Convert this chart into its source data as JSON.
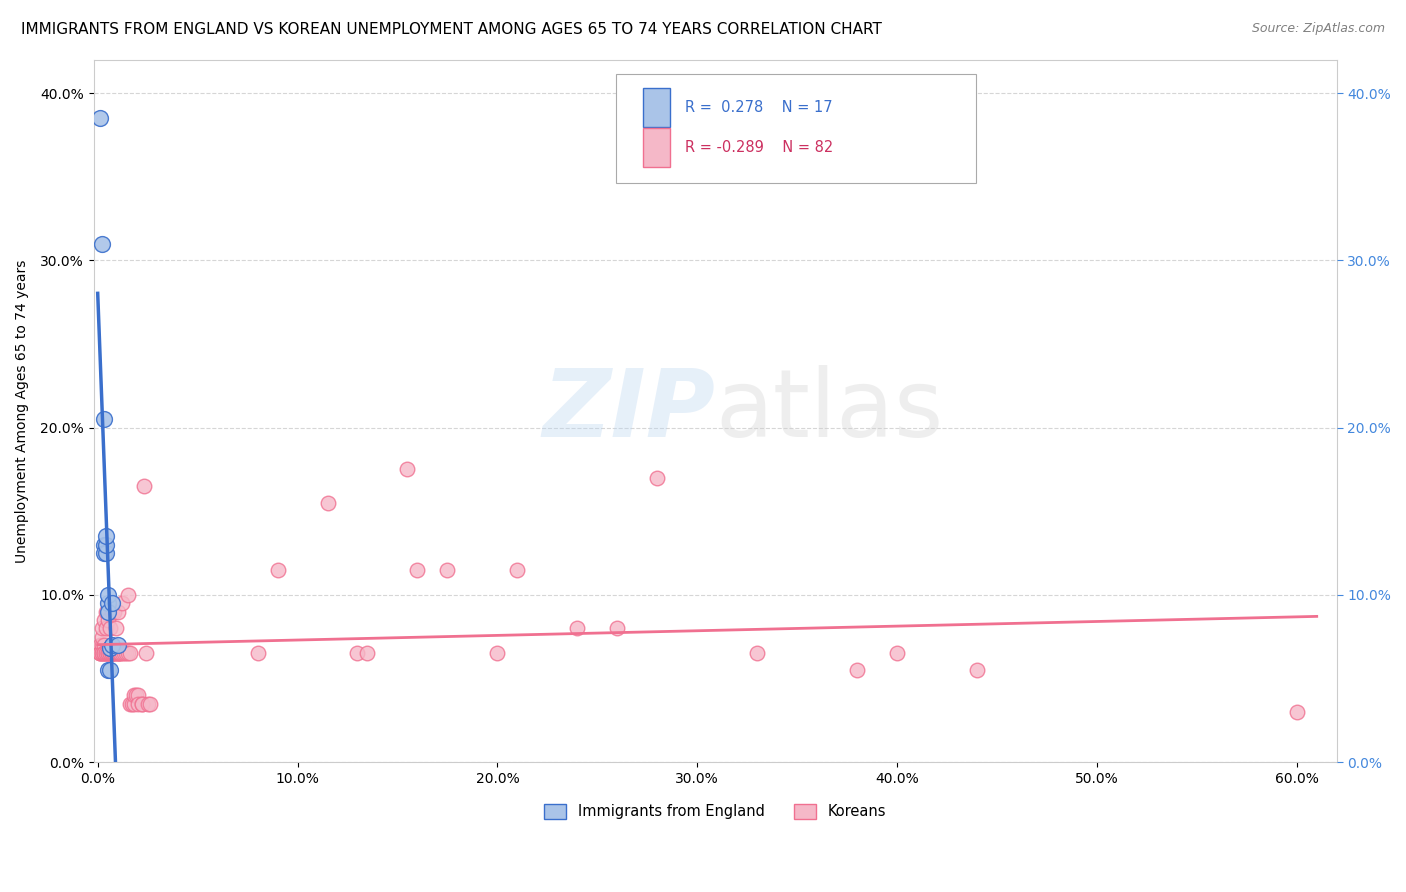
{
  "title": "IMMIGRANTS FROM ENGLAND VS KOREAN UNEMPLOYMENT AMONG AGES 65 TO 74 YEARS CORRELATION CHART",
  "source": "Source: ZipAtlas.com",
  "ylabel": "Unemployment Among Ages 65 to 74 years",
  "ylim": [
    0.0,
    0.42
  ],
  "xlim": [
    -0.002,
    0.62
  ],
  "legend_blue_label": "Immigrants from England",
  "legend_pink_label": "Koreans",
  "watermark_zip": "ZIP",
  "watermark_atlas": "atlas",
  "blue_color": "#aac4e8",
  "pink_color": "#f5b8c8",
  "blue_line_color": "#3a6fcc",
  "pink_line_color": "#f07090",
  "blue_scatter": [
    [
      0.001,
      0.385
    ],
    [
      0.002,
      0.31
    ],
    [
      0.003,
      0.205
    ],
    [
      0.003,
      0.13
    ],
    [
      0.003,
      0.125
    ],
    [
      0.004,
      0.125
    ],
    [
      0.004,
      0.13
    ],
    [
      0.004,
      0.135
    ],
    [
      0.005,
      0.095
    ],
    [
      0.005,
      0.1
    ],
    [
      0.005,
      0.09
    ],
    [
      0.005,
      0.055
    ],
    [
      0.006,
      0.055
    ],
    [
      0.006,
      0.068
    ],
    [
      0.007,
      0.07
    ],
    [
      0.007,
      0.095
    ],
    [
      0.01,
      0.07
    ]
  ],
  "pink_scatter": [
    [
      0.001,
      0.07
    ],
    [
      0.001,
      0.065
    ],
    [
      0.001,
      0.065
    ],
    [
      0.001,
      0.065
    ],
    [
      0.002,
      0.07
    ],
    [
      0.002,
      0.065
    ],
    [
      0.002,
      0.075
    ],
    [
      0.002,
      0.065
    ],
    [
      0.002,
      0.08
    ],
    [
      0.003,
      0.07
    ],
    [
      0.003,
      0.065
    ],
    [
      0.003,
      0.085
    ],
    [
      0.003,
      0.065
    ],
    [
      0.003,
      0.065
    ],
    [
      0.004,
      0.065
    ],
    [
      0.004,
      0.09
    ],
    [
      0.004,
      0.08
    ],
    [
      0.004,
      0.065
    ],
    [
      0.005,
      0.065
    ],
    [
      0.005,
      0.065
    ],
    [
      0.005,
      0.085
    ],
    [
      0.005,
      0.065
    ],
    [
      0.006,
      0.065
    ],
    [
      0.006,
      0.08
    ],
    [
      0.006,
      0.065
    ],
    [
      0.006,
      0.065
    ],
    [
      0.007,
      0.07
    ],
    [
      0.007,
      0.07
    ],
    [
      0.007,
      0.065
    ],
    [
      0.007,
      0.065
    ],
    [
      0.007,
      0.09
    ],
    [
      0.007,
      0.065
    ],
    [
      0.008,
      0.09
    ],
    [
      0.008,
      0.065
    ],
    [
      0.008,
      0.065
    ],
    [
      0.008,
      0.065
    ],
    [
      0.009,
      0.065
    ],
    [
      0.009,
      0.08
    ],
    [
      0.01,
      0.065
    ],
    [
      0.01,
      0.09
    ],
    [
      0.01,
      0.065
    ],
    [
      0.01,
      0.065
    ],
    [
      0.011,
      0.065
    ],
    [
      0.011,
      0.065
    ],
    [
      0.012,
      0.095
    ],
    [
      0.012,
      0.065
    ],
    [
      0.013,
      0.065
    ],
    [
      0.014,
      0.065
    ],
    [
      0.015,
      0.065
    ],
    [
      0.015,
      0.1
    ],
    [
      0.016,
      0.065
    ],
    [
      0.016,
      0.035
    ],
    [
      0.017,
      0.035
    ],
    [
      0.018,
      0.035
    ],
    [
      0.018,
      0.04
    ],
    [
      0.019,
      0.04
    ],
    [
      0.02,
      0.04
    ],
    [
      0.02,
      0.035
    ],
    [
      0.022,
      0.035
    ],
    [
      0.022,
      0.035
    ],
    [
      0.023,
      0.165
    ],
    [
      0.024,
      0.065
    ],
    [
      0.025,
      0.035
    ],
    [
      0.026,
      0.035
    ],
    [
      0.08,
      0.065
    ],
    [
      0.09,
      0.115
    ],
    [
      0.115,
      0.155
    ],
    [
      0.13,
      0.065
    ],
    [
      0.135,
      0.065
    ],
    [
      0.155,
      0.175
    ],
    [
      0.16,
      0.115
    ],
    [
      0.175,
      0.115
    ],
    [
      0.2,
      0.065
    ],
    [
      0.21,
      0.115
    ],
    [
      0.24,
      0.08
    ],
    [
      0.26,
      0.08
    ],
    [
      0.28,
      0.17
    ],
    [
      0.33,
      0.065
    ],
    [
      0.38,
      0.055
    ],
    [
      0.4,
      0.065
    ],
    [
      0.44,
      0.055
    ],
    [
      0.6,
      0.03
    ]
  ],
  "title_fontsize": 11,
  "axis_fontsize": 10,
  "tick_fontsize": 10
}
